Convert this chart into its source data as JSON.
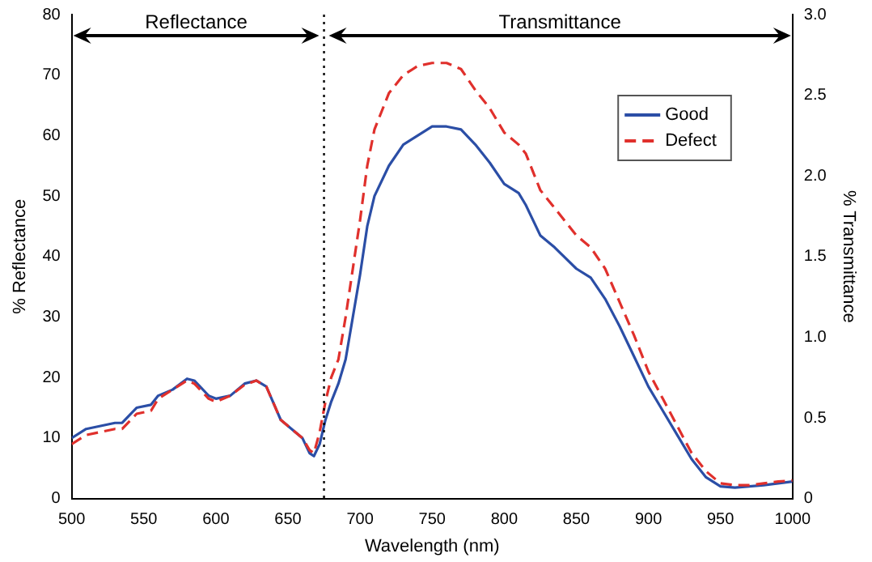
{
  "chart_data": {
    "type": "line",
    "xlabel": "Wavelength (nm)",
    "ylabel": "% Reflectance",
    "y2label": "% Transmittance",
    "annotations": [
      "Reflectance",
      "Transmittance"
    ],
    "xlim": [
      500,
      1000
    ],
    "xticks": [
      500,
      550,
      600,
      650,
      700,
      750,
      800,
      850,
      900,
      950,
      1000
    ],
    "ylim": [
      0,
      80
    ],
    "yticks": [
      0,
      10,
      20,
      30,
      40,
      50,
      60,
      70,
      80
    ],
    "y2lim": [
      0,
      3
    ],
    "y2ticks": [
      0,
      0.5,
      {
        "value": 1,
        "label": "1.0"
      },
      1.5,
      {
        "value": 2,
        "label": "2.0"
      },
      2.5,
      {
        "value": 3,
        "label": "3.0"
      }
    ],
    "ref_lines": [
      {
        "axis": "x",
        "value": 675,
        "label": null,
        "line_style": "dotted",
        "color": "#000000"
      }
    ],
    "grid": false,
    "legend": "top right",
    "marker": "none",
    "x": [
      500,
      510,
      520,
      530,
      535,
      545,
      555,
      560,
      570,
      580,
      585,
      595,
      600,
      610,
      620,
      628,
      635,
      645,
      655,
      660,
      665,
      668,
      672,
      676,
      680,
      685,
      690,
      695,
      700,
      705,
      710,
      720,
      730,
      740,
      750,
      760,
      770,
      780,
      790,
      800,
      810,
      815,
      825,
      835,
      850,
      860,
      870,
      880,
      890,
      900,
      910,
      920,
      930,
      940,
      950,
      960,
      970,
      980,
      990,
      1000
    ],
    "series": [
      {
        "name": "Good",
        "color": "#2b4ea6",
        "line_style": "solid",
        "values": [
          10,
          11.5,
          12,
          12.5,
          12.5,
          15,
          15.5,
          17,
          18,
          19.8,
          19.5,
          17,
          16.5,
          17,
          19,
          19.5,
          18.5,
          13,
          11,
          10,
          7.5,
          7,
          9,
          13,
          16,
          19,
          23,
          30,
          37,
          45,
          50,
          55,
          58.5,
          60,
          61.5,
          61.5,
          61,
          58.5,
          55.5,
          52,
          50.5,
          48.5,
          43.5,
          41.5,
          38,
          36.5,
          33,
          28.5,
          23.5,
          18.5,
          14.5,
          10.5,
          6.5,
          3.5,
          2,
          1.8,
          2,
          2.2,
          2.5,
          2.8
        ]
      },
      {
        "name": "Defect",
        "color": "#e0302c",
        "line_style": "dashed",
        "values": [
          9,
          10.5,
          11,
          11.5,
          11.5,
          14,
          14.5,
          16.5,
          18,
          19.5,
          19,
          16.5,
          16,
          17,
          18.8,
          19.5,
          18.5,
          13,
          11,
          10,
          8,
          7.5,
          11,
          16,
          20,
          23,
          30,
          38,
          46,
          55,
          61,
          67,
          70,
          71.5,
          72,
          72,
          71,
          67.5,
          64.5,
          60.5,
          58.5,
          57,
          51,
          48,
          43.5,
          41.5,
          38,
          32.5,
          27,
          21,
          16.5,
          12,
          7.5,
          4.5,
          2.5,
          2.2,
          2.2,
          2.5,
          2.8,
          3
        ]
      }
    ]
  }
}
